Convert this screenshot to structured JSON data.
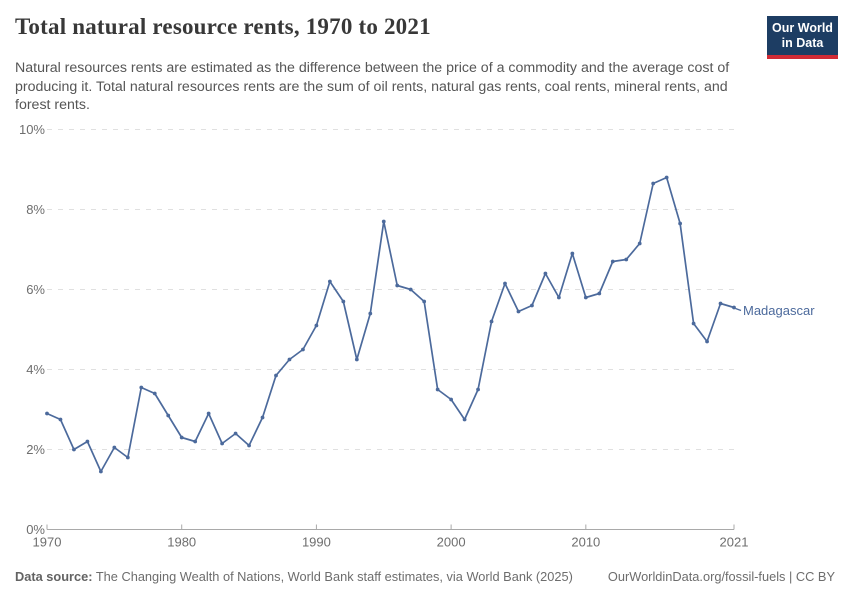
{
  "header": {
    "title": "Total natural resource rents, 1970 to 2021",
    "subtitle": "Natural resources rents are estimated as the difference between the price of a commodity and the average cost of producing it. Total natural resources rents are the sum of oil rents, natural gas rents, coal rents, mineral rents, and forest rents."
  },
  "logo": {
    "line1": "Our World",
    "line2": "in Data",
    "bg_color": "#1d3d63",
    "stripe_color": "#d12b35"
  },
  "chart_data": {
    "type": "line",
    "title": "Total natural resource rents, 1970 to 2021",
    "xlabel": "",
    "ylabel": "",
    "entity_label": "Madagascar",
    "x": [
      1970,
      1971,
      1972,
      1973,
      1974,
      1975,
      1976,
      1977,
      1978,
      1979,
      1980,
      1981,
      1982,
      1983,
      1984,
      1985,
      1986,
      1987,
      1988,
      1989,
      1990,
      1991,
      1992,
      1993,
      1994,
      1995,
      1996,
      1997,
      1998,
      1999,
      2000,
      2001,
      2002,
      2003,
      2004,
      2005,
      2006,
      2007,
      2008,
      2009,
      2010,
      2011,
      2012,
      2013,
      2014,
      2015,
      2016,
      2017,
      2018,
      2019,
      2020,
      2021
    ],
    "series": [
      {
        "name": "Madagascar",
        "color": "#4c6a9c",
        "values": [
          2.9,
          2.75,
          2.0,
          2.2,
          1.45,
          2.05,
          1.8,
          3.55,
          3.4,
          2.85,
          2.3,
          2.2,
          2.9,
          2.15,
          2.4,
          2.1,
          2.8,
          3.85,
          4.25,
          4.5,
          5.1,
          6.2,
          5.7,
          4.25,
          5.4,
          7.7,
          6.1,
          6.0,
          5.7,
          3.5,
          3.25,
          2.75,
          3.5,
          5.2,
          6.15,
          5.45,
          5.6,
          6.4,
          5.8,
          6.9,
          5.8,
          5.9,
          6.7,
          6.75,
          7.15,
          8.65,
          8.8,
          7.65,
          5.15,
          4.7,
          5.65,
          5.55
        ]
      }
    ],
    "ylim": [
      0,
      10
    ],
    "yticks": {
      "values": [
        0,
        2,
        4,
        6,
        8,
        10
      ],
      "labels": [
        "0%",
        "2%",
        "4%",
        "6%",
        "8%",
        "10%"
      ]
    },
    "xticks": [
      1970,
      1980,
      1990,
      2000,
      2010,
      2021
    ],
    "grid": "horizontal-dashed",
    "legend_position": "end-of-line-label"
  },
  "footer": {
    "source_label": "Data source:",
    "source_text": " The Changing Wealth of Nations, World Bank staff estimates, via World Bank (2025)",
    "license_text": "OurWorldinData.org/fossil-fuels | CC BY"
  }
}
